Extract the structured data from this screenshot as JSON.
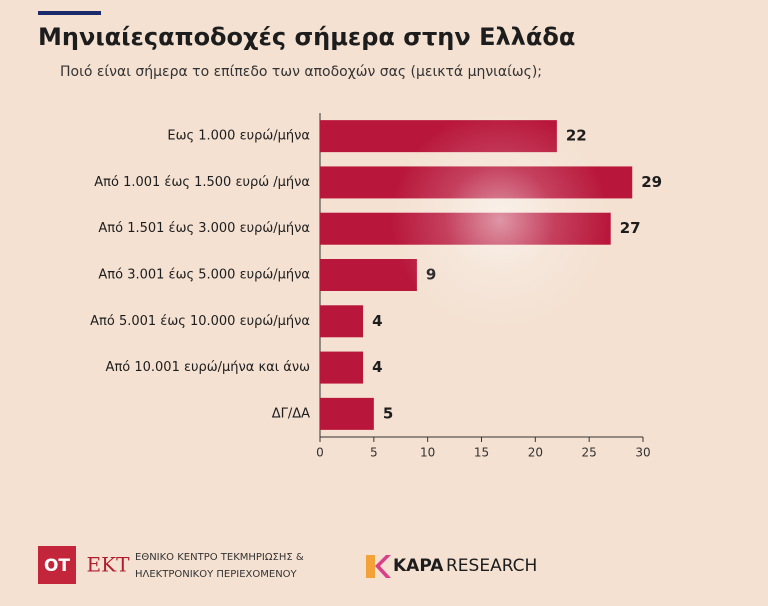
{
  "chart_data": {
    "type": "bar",
    "orientation": "horizontal",
    "title": "Μηνιαίεςαποδοχές σήμερα στην Ελλάδα",
    "subtitle": "Ποιό είναι σήμερα το επίπεδο των αποδοχών σας (μεικτά μηνιαίως);",
    "categories": [
      "Εως 1.000 ευρώ/μήνα",
      "Από 1.001 έως  1.500 ευρώ /μήνα",
      "Από 1.501 έως 3.000 ευρώ/μήνα",
      "Από 3.001 έως 5.000 ευρώ/μήνα",
      "Από 5.001 έως 10.000 ευρώ/μήνα",
      "Από 10.001 ευρώ/μήνα και άνω",
      "ΔΓ/ΔΑ"
    ],
    "values": [
      22,
      29,
      27,
      9,
      4,
      4,
      5
    ],
    "color": "#b8163a",
    "xlim": [
      0,
      30
    ],
    "xticks": [
      0,
      5,
      10,
      15,
      20,
      25,
      30
    ]
  },
  "footer": {
    "ot": "ΟΤ",
    "ekt": "ΕΚΤ",
    "ekt_line1": "ΕΘΝΙΚΟ ΚΕΝΤΡΟ ΤΕΚΜΗΡΙΩΣΗΣ &",
    "ekt_line2": "ΗΛΕΚΤΡΟΝΙΚΟΥ ΠΕΡΙΕΧΟΜΕΝΟΥ",
    "kapa": "KAPA",
    "research": "RESEARCH"
  }
}
